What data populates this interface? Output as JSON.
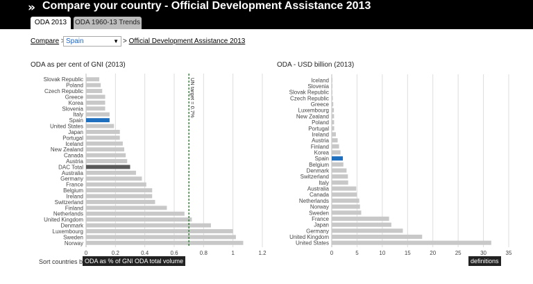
{
  "header": {
    "title": "Compare your country - Official Development Assistance 2013",
    "chevron": "»"
  },
  "tabs": [
    {
      "label": "ODA 2013",
      "active": true
    },
    {
      "label": "ODA 1960-13 Trends",
      "active": false
    }
  ],
  "breadcrumb": {
    "compare": "Compare",
    "sep1": ">",
    "country": "Spain",
    "sep2": ">",
    "page": "Official Development Assistance 2013"
  },
  "colors": {
    "bar": "#c8c8c8",
    "highlight": "#1f6fbf",
    "total": "#5a5a5a",
    "target": "#1a7a1a",
    "grid": "#dddddd"
  },
  "chart_data": [
    {
      "type": "bar",
      "orientation": "horizontal",
      "title": "ODA as per cent of GNI (2013)",
      "xlim": [
        0,
        1.2
      ],
      "ticks": [
        0,
        0.2,
        0.4,
        0.6,
        0.8,
        1,
        1.2
      ],
      "tick_labels": [
        "0",
        "0.2",
        "0.4",
        "0.6",
        "0.8",
        "1",
        "1.2"
      ],
      "categories": [
        "Slovak Republic",
        "Poland",
        "Czech Republic",
        "Greece",
        "Korea",
        "Slovenia",
        "Italy",
        "Spain",
        "United States",
        "Japan",
        "Portugal",
        "Iceland",
        "New Zealand",
        "Canada",
        "Austria",
        "DAC Total",
        "Australia",
        "Germany",
        "France",
        "Belgium",
        "Ireland",
        "Switzerland",
        "Finland",
        "Netherlands",
        "United Kingdom",
        "Denmark",
        "Luxembourg",
        "Sweden",
        "Norway"
      ],
      "values": [
        0.09,
        0.1,
        0.11,
        0.13,
        0.13,
        0.13,
        0.16,
        0.16,
        0.19,
        0.23,
        0.23,
        0.25,
        0.26,
        0.27,
        0.28,
        0.3,
        0.34,
        0.38,
        0.41,
        0.45,
        0.45,
        0.47,
        0.55,
        0.67,
        0.72,
        0.85,
        1.0,
        1.02,
        1.07
      ],
      "highlight": "Spain",
      "total": "DAC Total",
      "target": {
        "value": 0.7,
        "label": "UN target = 0.7%"
      }
    },
    {
      "type": "bar",
      "orientation": "horizontal",
      "title": "ODA - USD billion (2013)",
      "xlim": [
        0,
        35
      ],
      "ticks": [
        0,
        5,
        10,
        15,
        20,
        25,
        30,
        35
      ],
      "tick_labels": [
        "0",
        "5",
        "10",
        "15",
        "20",
        "25",
        "30",
        "35"
      ],
      "categories": [
        "Iceland",
        "Slovenia",
        "Slovak Republic",
        "Czech Republic",
        "Greece",
        "Luxembourg",
        "New Zealand",
        "Poland",
        "Portugal",
        "Ireland",
        "Austria",
        "Finland",
        "Korea",
        "Spain",
        "Belgium",
        "Denmark",
        "Switzerland",
        "Italy",
        "Australia",
        "Canada",
        "Netherlands",
        "Norway",
        "Sweden",
        "France",
        "Japan",
        "Germany",
        "United Kingdom",
        "United States"
      ],
      "values": [
        0.04,
        0.06,
        0.09,
        0.21,
        0.3,
        0.43,
        0.46,
        0.47,
        0.49,
        0.82,
        1.17,
        1.44,
        1.74,
        2.2,
        2.3,
        2.93,
        3.2,
        3.25,
        4.85,
        4.95,
        5.44,
        5.58,
        5.83,
        11.34,
        11.79,
        14.06,
        17.88,
        31.55
      ],
      "highlight": "Spain"
    }
  ],
  "sort": {
    "label": "Sort countries by",
    "opt1": "ODA as % of GNI",
    "opt2": "ODA total volume"
  },
  "definitions": "definitions"
}
